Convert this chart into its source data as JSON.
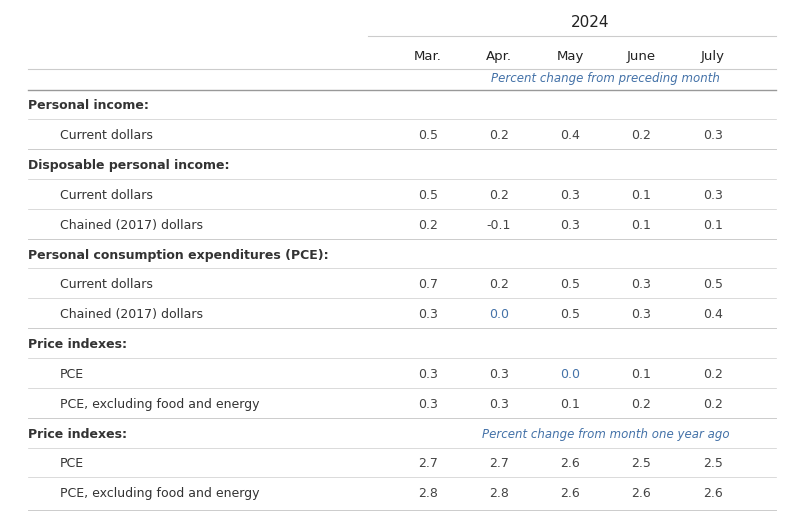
{
  "title": "2024",
  "col_headers": [
    "Mar.",
    "Apr.",
    "May",
    "June",
    "July"
  ],
  "subheader1": "Percent change from preceding month",
  "subheader2": "Percent change from month one year ago",
  "rows": [
    {
      "label": "Personal income:",
      "indent": false,
      "header": true,
      "values": [
        null,
        null,
        null,
        null,
        null
      ],
      "section_start": true
    },
    {
      "label": "Current dollars",
      "indent": true,
      "header": false,
      "values": [
        "0.5",
        "0.2",
        "0.4",
        "0.2",
        "0.3"
      ]
    },
    {
      "label": "Disposable personal income:",
      "indent": false,
      "header": true,
      "values": [
        null,
        null,
        null,
        null,
        null
      ],
      "section_start": true
    },
    {
      "label": "Current dollars",
      "indent": true,
      "header": false,
      "values": [
        "0.5",
        "0.2",
        "0.3",
        "0.1",
        "0.3"
      ]
    },
    {
      "label": "Chained (2017) dollars",
      "indent": true,
      "header": false,
      "values": [
        "0.2",
        "-0.1",
        "0.3",
        "0.1",
        "0.1"
      ]
    },
    {
      "label": "Personal consumption expenditures (PCE):",
      "indent": false,
      "header": true,
      "values": [
        null,
        null,
        null,
        null,
        null
      ],
      "section_start": true
    },
    {
      "label": "Current dollars",
      "indent": true,
      "header": false,
      "values": [
        "0.7",
        "0.2",
        "0.5",
        "0.3",
        "0.5"
      ]
    },
    {
      "label": "Chained (2017) dollars",
      "indent": true,
      "header": false,
      "values": [
        "0.3",
        "0.0",
        "0.5",
        "0.3",
        "0.4"
      ]
    },
    {
      "label": "Price indexes:",
      "indent": false,
      "header": true,
      "values": [
        null,
        null,
        null,
        null,
        null
      ],
      "section_start": true
    },
    {
      "label": "PCE",
      "indent": true,
      "header": false,
      "values": [
        "0.3",
        "0.3",
        "0.0",
        "0.1",
        "0.2"
      ]
    },
    {
      "label": "PCE, excluding food and energy",
      "indent": true,
      "header": false,
      "values": [
        "0.3",
        "0.3",
        "0.1",
        "0.2",
        "0.2"
      ]
    },
    {
      "label": "Price indexes:",
      "indent": false,
      "header": true,
      "values": [
        null,
        null,
        null,
        null,
        null
      ],
      "section_start": true,
      "subheader": true
    },
    {
      "label": "PCE",
      "indent": true,
      "header": false,
      "values": [
        "2.7",
        "2.7",
        "2.6",
        "2.5",
        "2.5"
      ]
    },
    {
      "label": "PCE, excluding food and energy",
      "indent": true,
      "header": false,
      "values": [
        "2.8",
        "2.8",
        "2.6",
        "2.6",
        "2.6"
      ]
    }
  ],
  "bg_color": "#ffffff",
  "text_color": "#222222",
  "label_color": "#333333",
  "subheader_color": "#4472a8",
  "line_color": "#cccccc",
  "line_color_dark": "#999999",
  "value_color": "#444444",
  "zero_color": "#4472a8"
}
